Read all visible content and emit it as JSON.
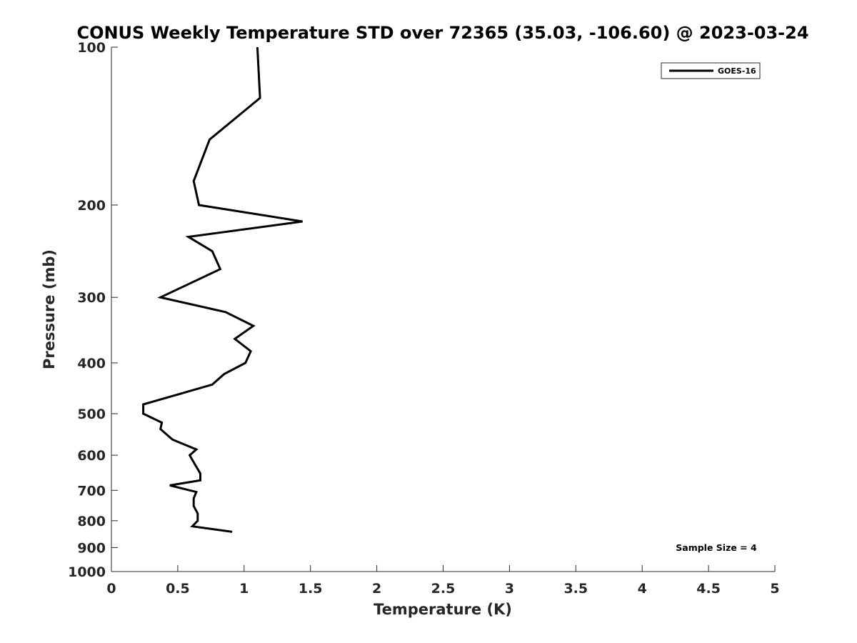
{
  "chart_data": {
    "type": "line",
    "title": "CONUS Weekly Temperature STD over 72365 (35.03, -106.60) @ 2023-03-24",
    "xlabel": "Temperature (K)",
    "ylabel": "Pressure (mb)",
    "xlim": [
      0,
      5
    ],
    "ylim": [
      100,
      1000
    ],
    "yscale": "log",
    "y_reversed": true,
    "xticks": [
      0,
      0.5,
      1,
      1.5,
      2,
      2.5,
      3,
      3.5,
      4,
      4.5,
      5
    ],
    "xtick_labels": [
      "0",
      "0.5",
      "1",
      "1.5",
      "2",
      "2.5",
      "3",
      "3.5",
      "4",
      "4.5",
      "5"
    ],
    "yticks": [
      100,
      200,
      300,
      400,
      500,
      600,
      700,
      800,
      900,
      1000
    ],
    "ytick_labels": [
      "100",
      "200",
      "300",
      "400",
      "500",
      "600",
      "700",
      "800",
      "900",
      "1000"
    ],
    "grid": false,
    "legend_position": "top-right",
    "annotation": "Sample Size = 4",
    "series": [
      {
        "name": "GOES-16",
        "color": "#000000",
        "points": [
          {
            "x": 1.1,
            "y": 100
          },
          {
            "x": 1.12,
            "y": 125
          },
          {
            "x": 0.74,
            "y": 150
          },
          {
            "x": 0.62,
            "y": 180
          },
          {
            "x": 0.66,
            "y": 200
          },
          {
            "x": 1.44,
            "y": 215
          },
          {
            "x": 0.58,
            "y": 230
          },
          {
            "x": 0.76,
            "y": 245
          },
          {
            "x": 0.82,
            "y": 265
          },
          {
            "x": 0.37,
            "y": 300
          },
          {
            "x": 0.86,
            "y": 320
          },
          {
            "x": 1.07,
            "y": 340
          },
          {
            "x": 0.93,
            "y": 360
          },
          {
            "x": 1.05,
            "y": 380
          },
          {
            "x": 1.01,
            "y": 400
          },
          {
            "x": 0.85,
            "y": 420
          },
          {
            "x": 0.76,
            "y": 440
          },
          {
            "x": 0.24,
            "y": 480
          },
          {
            "x": 0.24,
            "y": 500
          },
          {
            "x": 0.38,
            "y": 520
          },
          {
            "x": 0.37,
            "y": 535
          },
          {
            "x": 0.46,
            "y": 560
          },
          {
            "x": 0.64,
            "y": 585
          },
          {
            "x": 0.59,
            "y": 600
          },
          {
            "x": 0.63,
            "y": 625
          },
          {
            "x": 0.67,
            "y": 650
          },
          {
            "x": 0.67,
            "y": 670
          },
          {
            "x": 0.44,
            "y": 685
          },
          {
            "x": 0.64,
            "y": 705
          },
          {
            "x": 0.62,
            "y": 725
          },
          {
            "x": 0.62,
            "y": 750
          },
          {
            "x": 0.65,
            "y": 775
          },
          {
            "x": 0.65,
            "y": 800
          },
          {
            "x": 0.61,
            "y": 820
          },
          {
            "x": 0.91,
            "y": 840
          }
        ]
      }
    ]
  }
}
